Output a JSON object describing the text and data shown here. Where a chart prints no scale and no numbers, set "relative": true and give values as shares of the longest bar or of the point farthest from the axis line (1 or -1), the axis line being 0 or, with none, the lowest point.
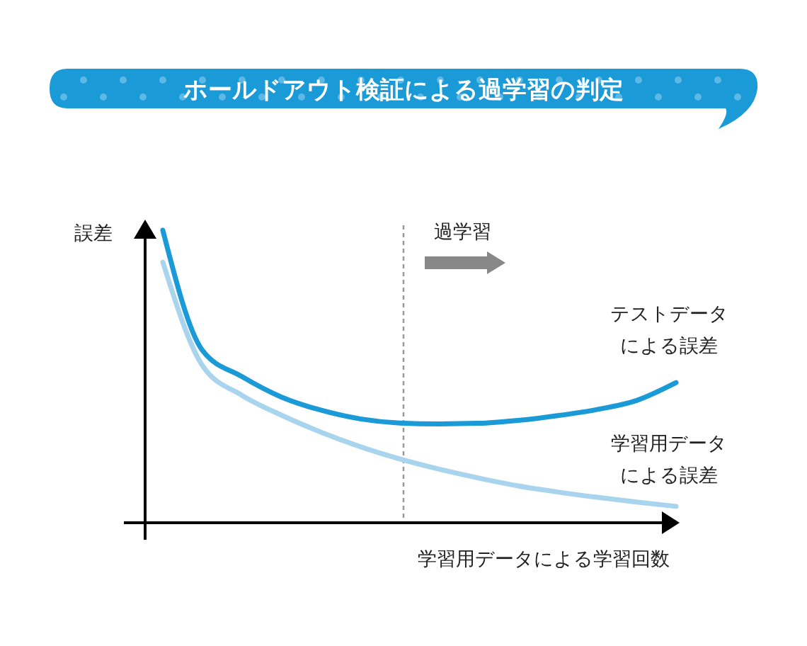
{
  "chart_data": {
    "type": "line",
    "relative": true,
    "title": "ホールドアウト検証による過学習の判定",
    "xlabel": "学習用データによる学習回数",
    "ylabel": "誤差",
    "marker": "none",
    "line_style": "solid",
    "categories": [
      null,
      null,
      null,
      null,
      null,
      null,
      null,
      null,
      null,
      null,
      null,
      null,
      null,
      null
    ],
    "series": [
      {
        "name": "テストデータによる誤差",
        "color": "#1a9ad6",
        "values": [
          1.0,
          0.59,
          0.5,
          0.43,
          0.385,
          0.355,
          0.341,
          0.338,
          0.34,
          0.35,
          0.366,
          0.387,
          0.418,
          0.479
        ]
      },
      {
        "name": "学習用データによる誤差",
        "color": "#a8d4ee",
        "values": [
          0.891,
          0.538,
          0.436,
          0.368,
          0.31,
          0.26,
          0.218,
          0.183,
          0.153,
          0.126,
          0.105,
          0.087,
          0.071,
          0.056
        ]
      }
    ],
    "annotations": [
      "過学習"
    ]
  }
}
